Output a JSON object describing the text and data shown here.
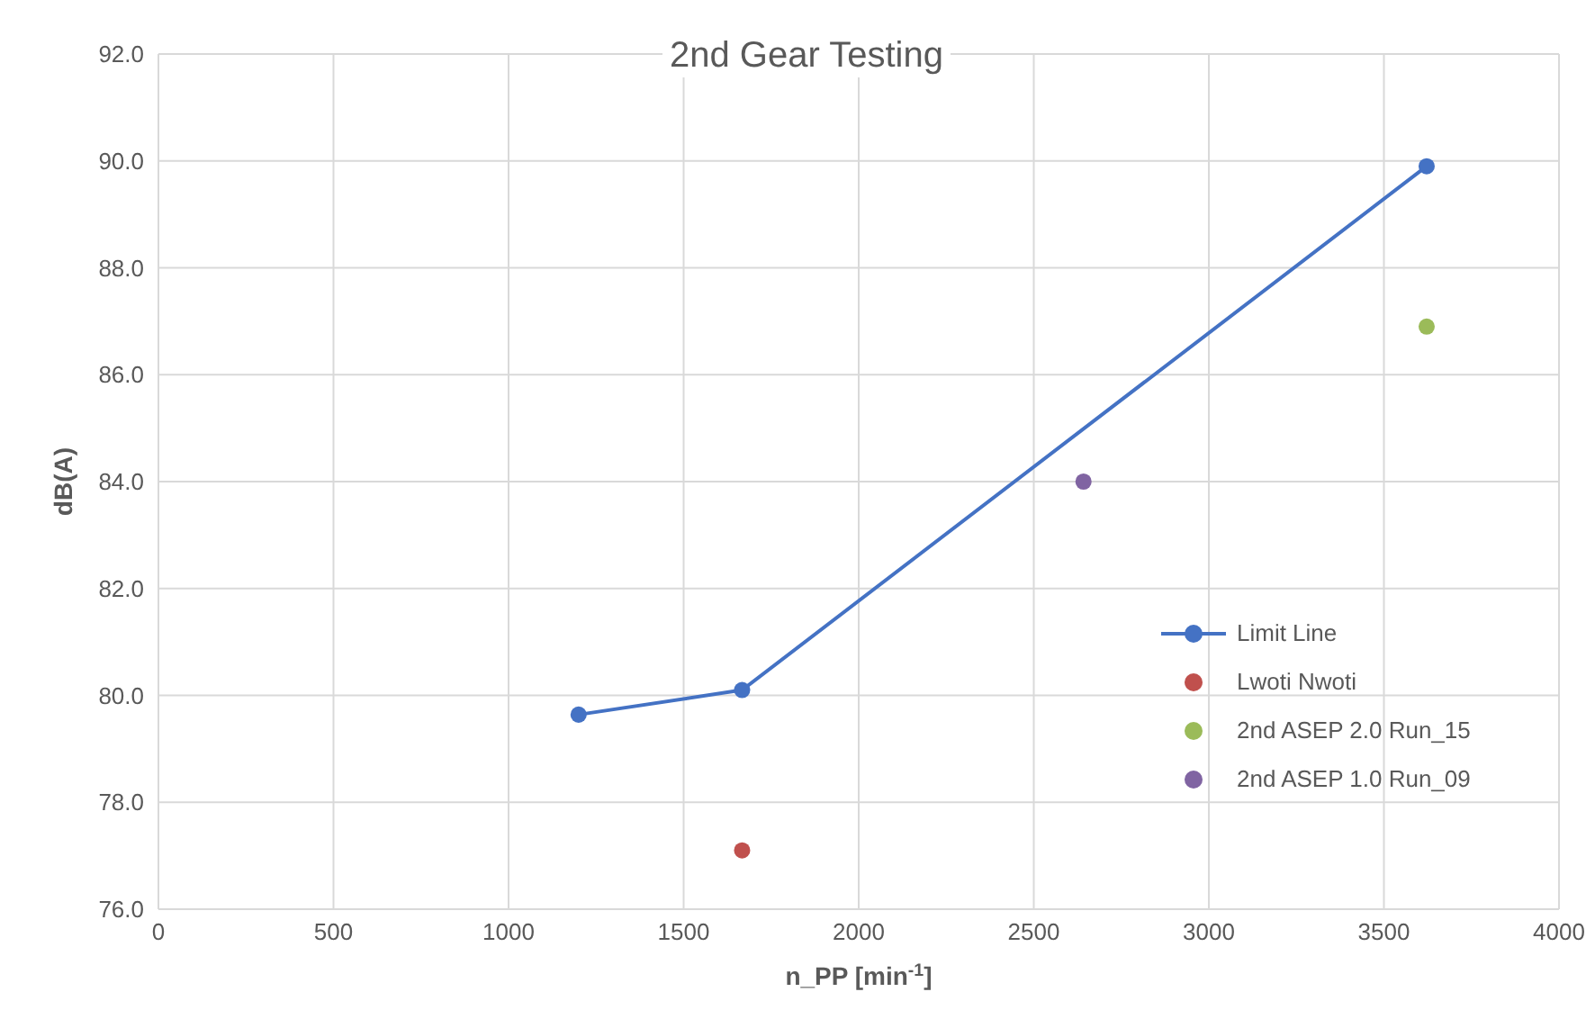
{
  "chart_data": {
    "type": "scatter",
    "title": "2nd Gear Testing",
    "xlabel": "n_PP [min$^{-1}$]",
    "ylabel": "dB(A)",
    "xlim": [
      0,
      4000
    ],
    "xticks": [
      0,
      500,
      1000,
      1500,
      2000,
      2500,
      3000,
      3500,
      4000
    ],
    "ylim": [
      76,
      92
    ],
    "yticks": [
      {
        "value": 76,
        "label": "76.0"
      },
      {
        "value": 78,
        "label": "78.0"
      },
      {
        "value": 80,
        "label": "80.0"
      },
      {
        "value": 82,
        "label": "82.0"
      },
      {
        "value": 84,
        "label": "84.0"
      },
      {
        "value": 86,
        "label": "86.0"
      },
      {
        "value": 88,
        "label": "88.0"
      },
      {
        "value": 90,
        "label": "90.0"
      },
      {
        "value": 92,
        "label": "92.0"
      }
    ],
    "grid": true,
    "legend": "right",
    "marker": "circle",
    "series": [
      {
        "name": "Limit Line",
        "type": "line",
        "color": "#4472c4",
        "x": [
          1200,
          1667,
          3622
        ],
        "values": [
          79.64,
          80.1,
          89.9
        ]
      },
      {
        "name": "Lwoti Nwoti",
        "type": "scatter",
        "color": "#c0504d",
        "x": [
          1667
        ],
        "values": [
          77.1
        ]
      },
      {
        "name": "2nd ASEP 2.0 Run_15",
        "type": "scatter",
        "color": "#9bbb59",
        "x": [
          3622
        ],
        "values": [
          86.9
        ]
      },
      {
        "name": "2nd ASEP 1.0 Run_09",
        "type": "scatter",
        "color": "#8064a2",
        "x": [
          2642
        ],
        "values": [
          84.0
        ]
      }
    ]
  }
}
